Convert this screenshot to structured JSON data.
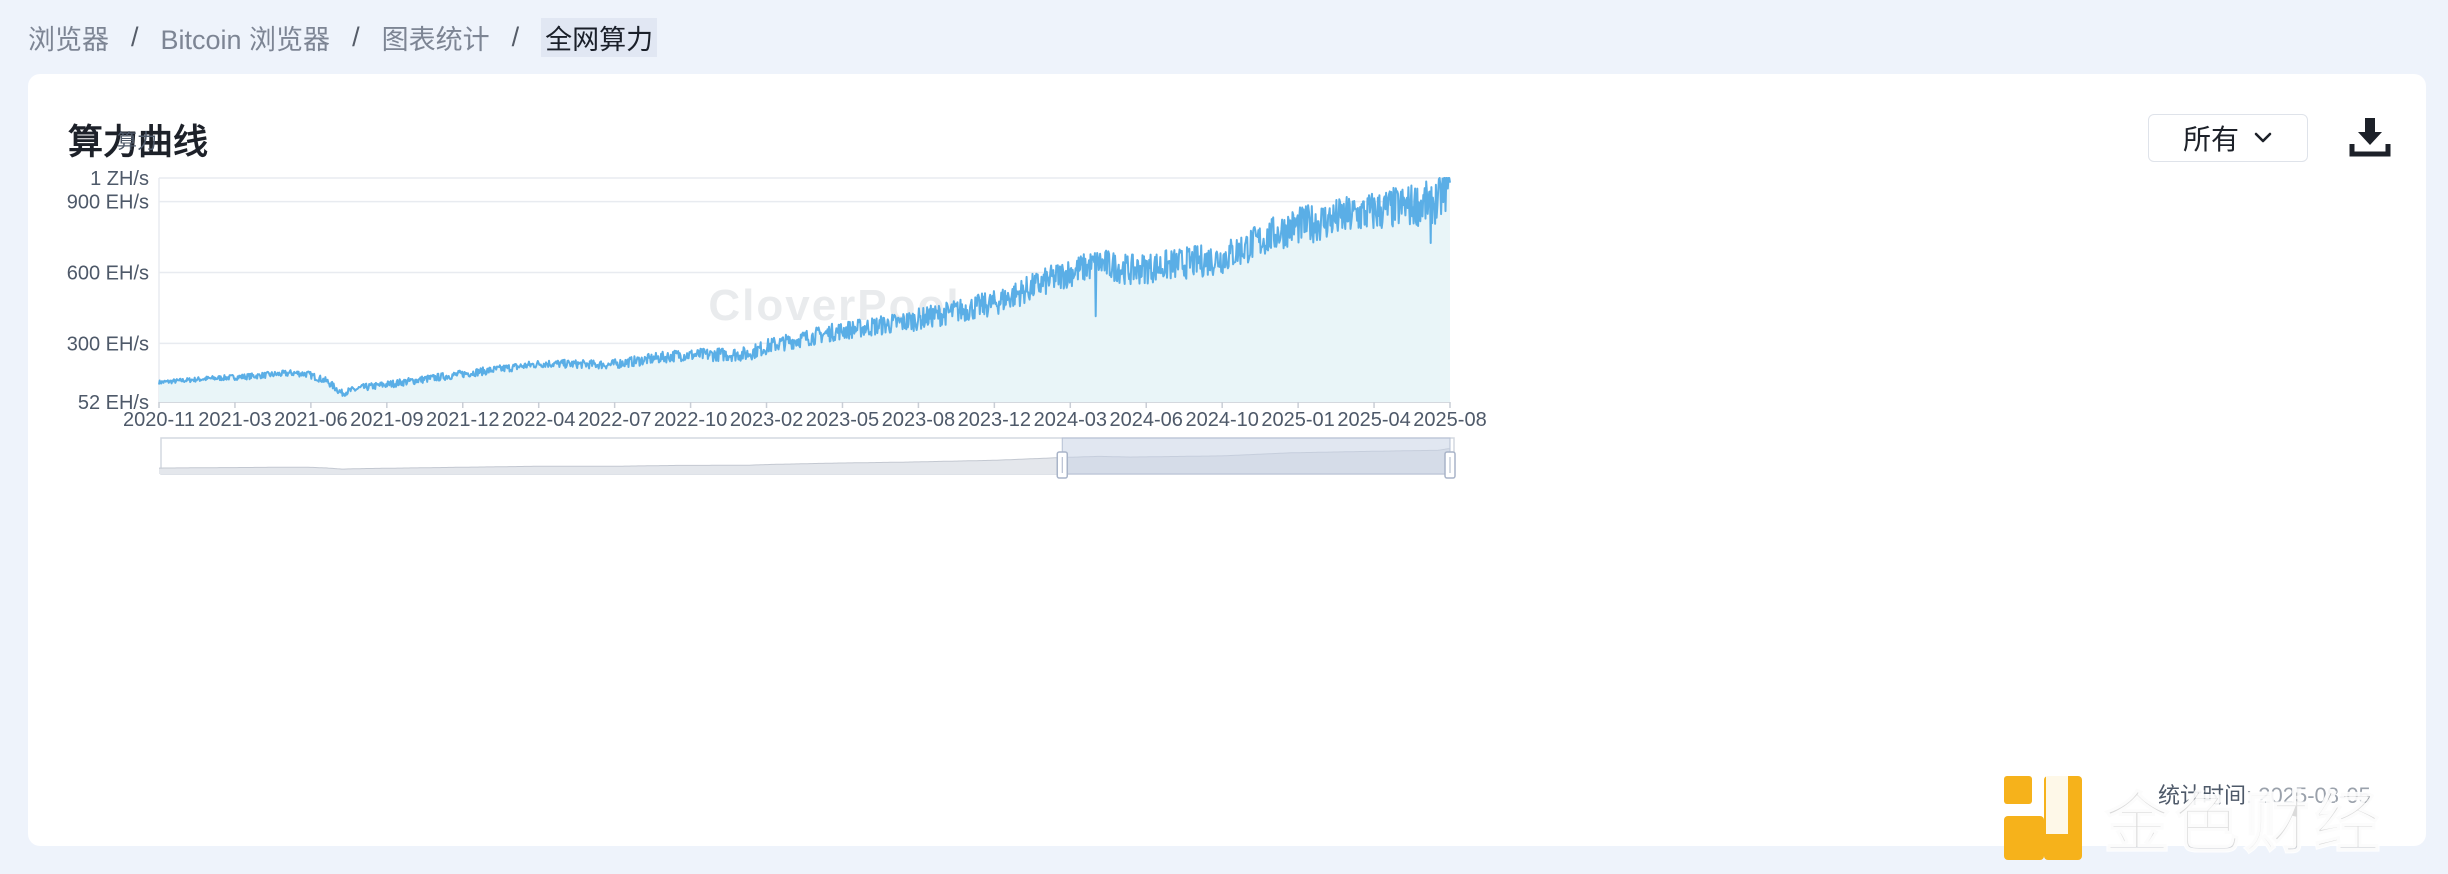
{
  "breadcrumb": {
    "items": [
      "浏览器",
      "Bitcoin 浏览器",
      "图表统计"
    ],
    "current": "全网算力",
    "separator": "/"
  },
  "card": {
    "title": "算力曲线",
    "range_select": {
      "label": "所有"
    }
  },
  "watermark": "CloverPool",
  "footer": {
    "stats_label": "统计时间:",
    "stats_value": "2025-08-05"
  },
  "brand_logo": "金色财经",
  "colors": {
    "line": "#5aaee6",
    "area": "#e9f5f8",
    "grid": "#e8ebf0",
    "axis_text": "#4e5969",
    "brush": "#c9d3e6"
  },
  "chart_data": {
    "type": "line",
    "ylabel": "算力",
    "y_ticks": [
      "1 ZH/s",
      "900 EH/s",
      "600 EH/s",
      "300 EH/s",
      "52 EH/s"
    ],
    "y_tick_values": [
      1000,
      900,
      600,
      300,
      52
    ],
    "ylim": [
      52,
      1000
    ],
    "y_unit": "EH/s",
    "x_ticks": [
      "2020-11",
      "2021-03",
      "2021-06",
      "2021-09",
      "2021-12",
      "2022-04",
      "2022-07",
      "2022-10",
      "2023-02",
      "2023-05",
      "2023-08",
      "2023-12",
      "2024-03",
      "2024-06",
      "2024-10",
      "2025-01",
      "2025-04",
      "2025-08"
    ],
    "xlim": [
      "2020-11-01",
      "2025-08-05"
    ],
    "grid": true,
    "legend": "none",
    "series": [
      {
        "anchors": [
          [
            "2020-11-01",
            135
          ],
          [
            "2021-01-01",
            150
          ],
          [
            "2021-03-01",
            160
          ],
          [
            "2021-05-01",
            175
          ],
          [
            "2021-05-20",
            170
          ],
          [
            "2021-06-15",
            140
          ],
          [
            "2021-07-05",
            90
          ],
          [
            "2021-08-01",
            112
          ],
          [
            "2021-09-01",
            125
          ],
          [
            "2021-12-01",
            165
          ],
          [
            "2022-04-01",
            215
          ],
          [
            "2022-07-01",
            210
          ],
          [
            "2022-10-01",
            250
          ],
          [
            "2023-01-01",
            255
          ],
          [
            "2023-02-01",
            290
          ],
          [
            "2023-05-01",
            350
          ],
          [
            "2023-08-01",
            390
          ],
          [
            "2023-12-01",
            470
          ],
          [
            "2024-03-01",
            590
          ],
          [
            "2024-04-20",
            640
          ],
          [
            "2024-06-01",
            610
          ],
          [
            "2024-10-01",
            660
          ],
          [
            "2025-01-01",
            790
          ],
          [
            "2025-04-01",
            845
          ],
          [
            "2025-06-15",
            885
          ],
          [
            "2025-07-20",
            900
          ],
          [
            "2025-08-05",
            980
          ]
        ],
        "volatility": [
          [
            "2020-11-01",
            9
          ],
          [
            "2021-06-01",
            15
          ],
          [
            "2022-06-01",
            18
          ],
          [
            "2023-06-01",
            40
          ],
          [
            "2024-03-01",
            62
          ],
          [
            "2024-10-01",
            70
          ],
          [
            "2025-03-01",
            85
          ],
          [
            "2025-08-05",
            95
          ]
        ],
        "notable_dips": [
          [
            "2024-04-15",
            415
          ],
          [
            "2025-07-10",
            725
          ]
        ]
      }
    ],
    "zoom_window": [
      "2024-03-01",
      "2025-08-05"
    ]
  }
}
